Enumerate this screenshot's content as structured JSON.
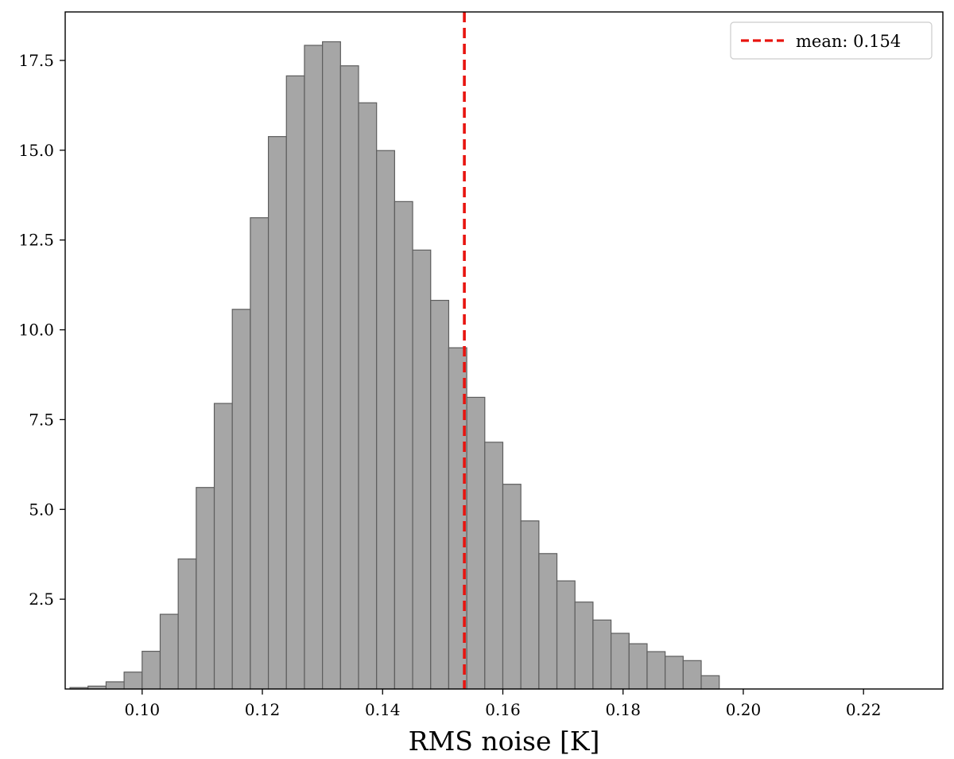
{
  "chart_data": {
    "type": "bar",
    "xlabel": "RMS noise [K]",
    "ylabel": "",
    "title": "",
    "xlim": [
      0.0872,
      0.2332
    ],
    "ylim": [
      0,
      18.85
    ],
    "x_ticks": [
      0.1,
      0.12,
      0.14,
      0.16,
      0.18,
      0.2,
      0.22
    ],
    "x_tick_labels": [
      "0.10",
      "0.12",
      "0.14",
      "0.16",
      "0.18",
      "0.20",
      "0.22"
    ],
    "y_ticks": [
      2.5,
      5.0,
      7.5,
      10.0,
      12.5,
      15.0,
      17.5
    ],
    "y_tick_labels": [
      "2.5",
      "5.0",
      "7.5",
      "10.0",
      "12.5",
      "15.0",
      "17.5"
    ],
    "bin_start": 0.088,
    "bin_width": 0.003,
    "values": [
      0.04,
      0.08,
      0.2,
      0.47,
      1.05,
      2.08,
      3.62,
      5.61,
      7.95,
      10.57,
      13.12,
      15.38,
      17.07,
      17.92,
      18.02,
      17.35,
      16.32,
      14.99,
      13.57,
      12.22,
      10.82,
      9.5,
      8.12,
      6.87,
      5.7,
      4.68,
      3.77,
      3.01,
      2.42,
      1.92,
      1.55,
      1.26,
      1.04,
      0.91,
      0.79,
      0.37
    ],
    "bar_color": "#a6a6a6",
    "edge_color": "#5e5e5e",
    "mean_line": {
      "value": 0.1536,
      "color": "#e8140f",
      "style": "dashed",
      "label": "mean: 0.154"
    },
    "legend": {
      "position": "top-right",
      "entries": [
        "mean: 0.154"
      ]
    },
    "grid": false
  }
}
